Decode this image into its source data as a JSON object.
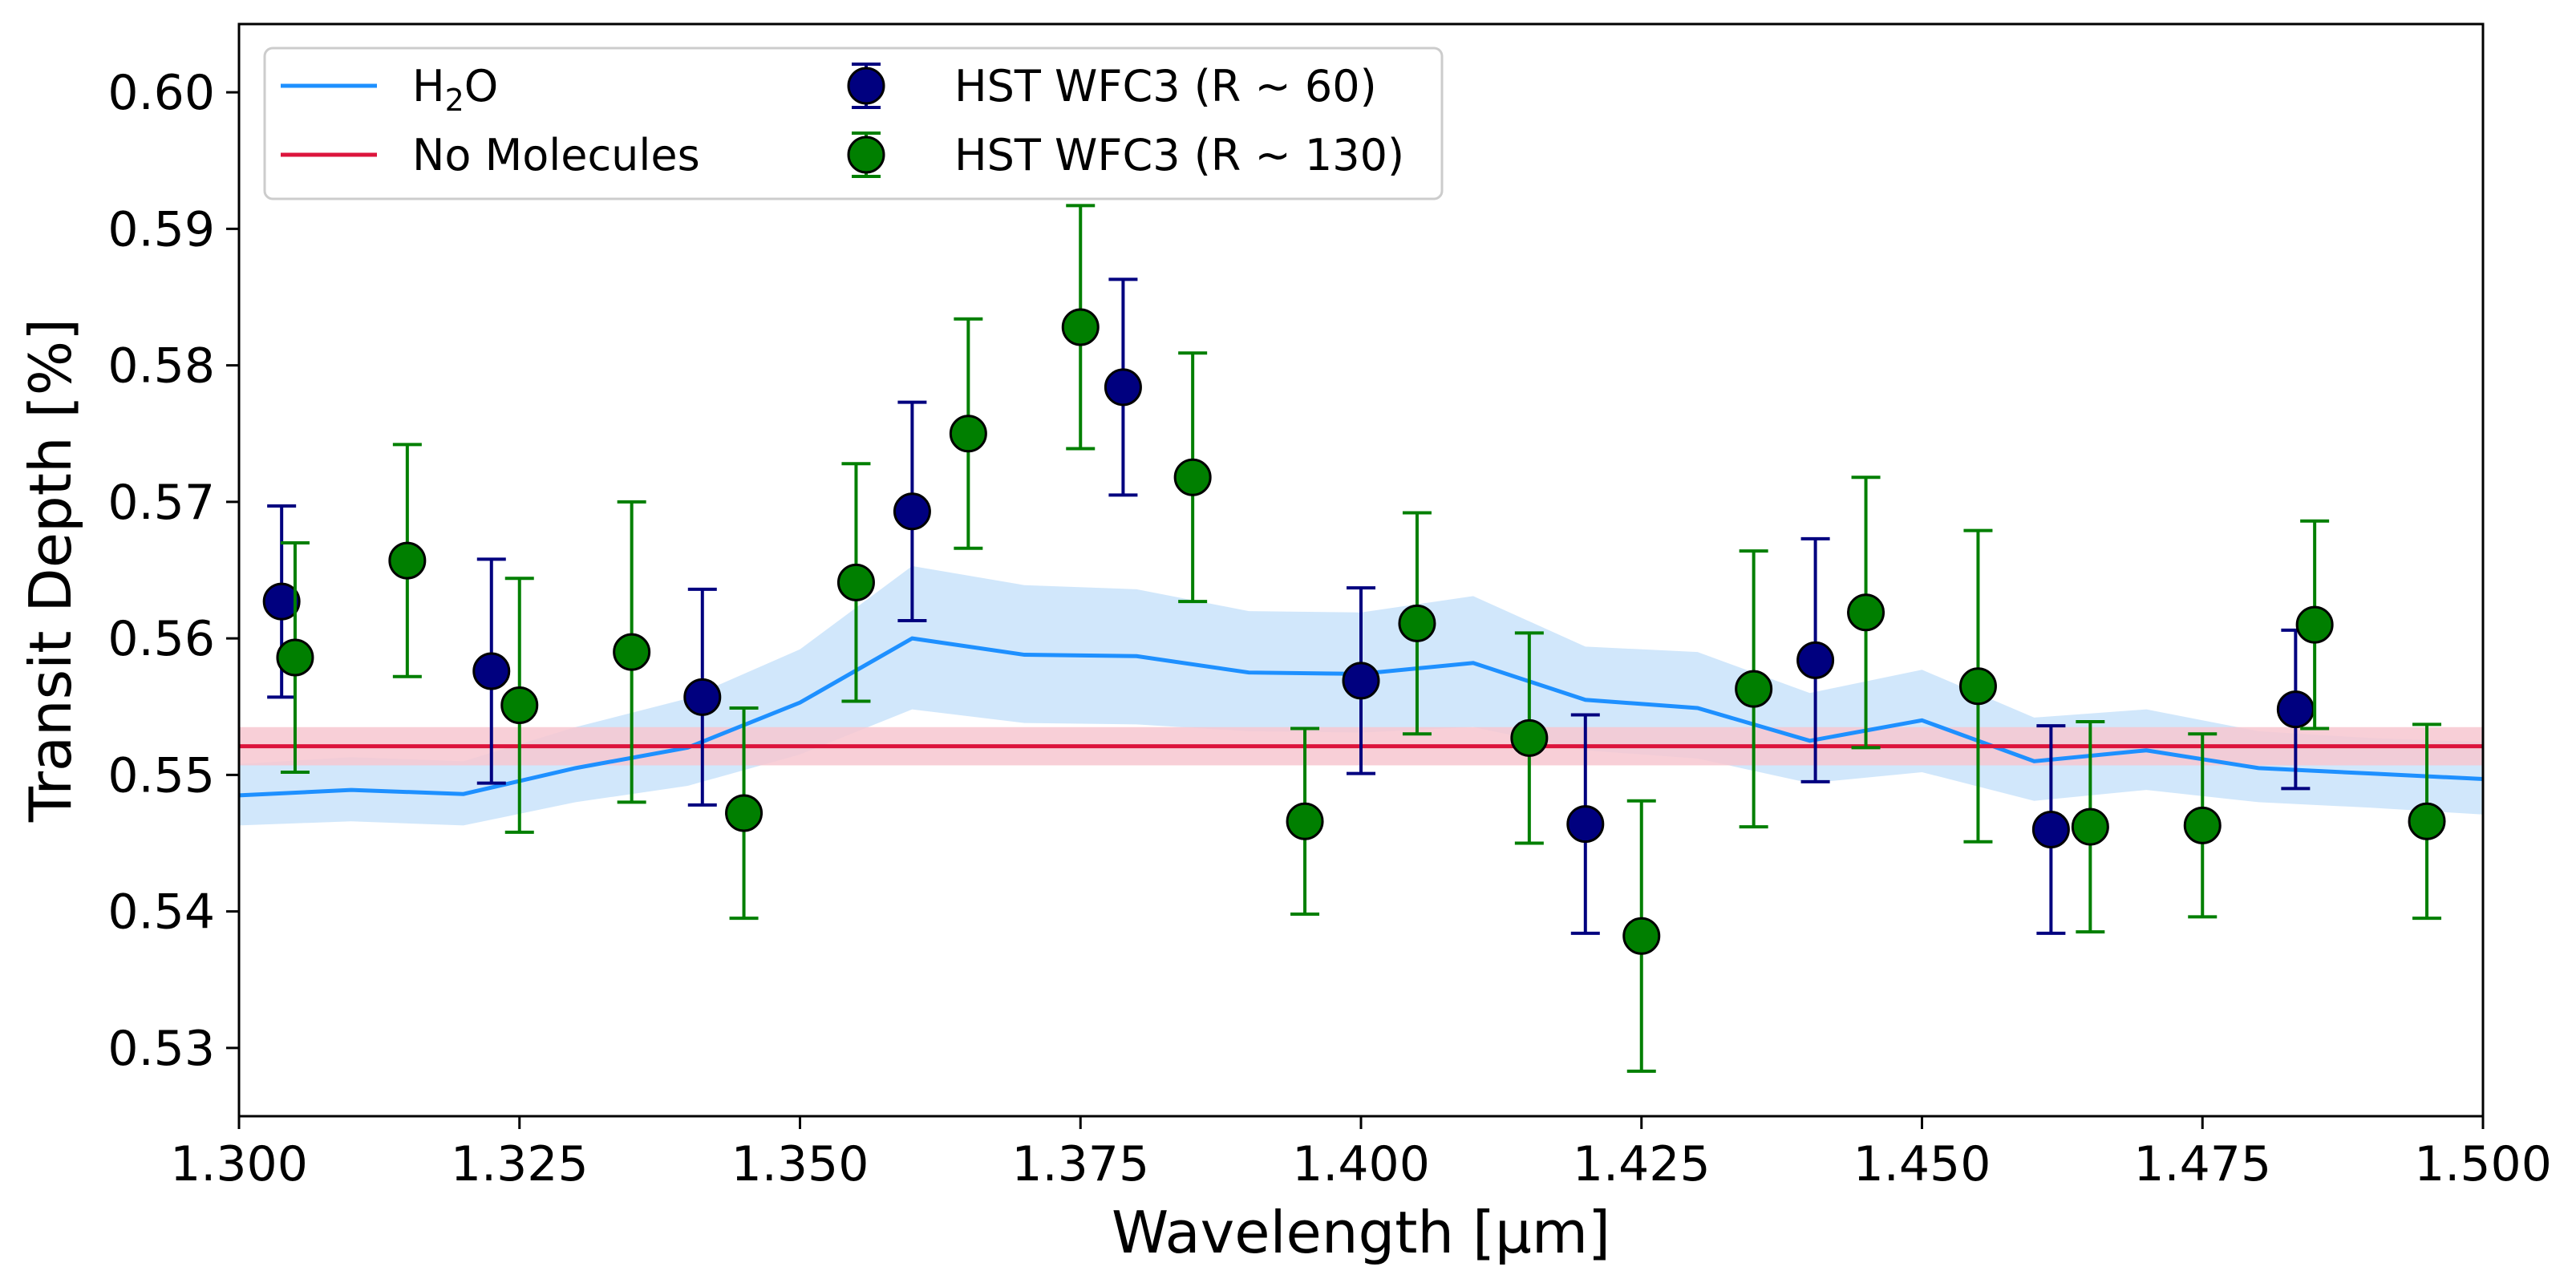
{
  "chart_data": {
    "type": "scatter",
    "title": "",
    "xlabel": "Wavelength [μm]",
    "ylabel": "Transit Depth [%]",
    "xlim": [
      1.3,
      1.5
    ],
    "ylim": [
      0.525,
      0.605
    ],
    "xticks": [
      "1.300",
      "1.325",
      "1.350",
      "1.375",
      "1.400",
      "1.425",
      "1.450",
      "1.475",
      "1.500"
    ],
    "xtick_values": [
      1.3,
      1.325,
      1.35,
      1.375,
      1.4,
      1.425,
      1.45,
      1.475,
      1.5
    ],
    "yticks": [
      "0.53",
      "0.54",
      "0.55",
      "0.56",
      "0.57",
      "0.58",
      "0.59",
      "0.60"
    ],
    "ytick_values": [
      0.53,
      0.54,
      0.55,
      0.56,
      0.57,
      0.58,
      0.59,
      0.6
    ],
    "grid": false,
    "legend_position": "top-left",
    "colors": {
      "h2o_line": "#1e90ff",
      "h2o_band": "#cce4fb",
      "flat_line": "#dc143c",
      "flat_band": "#f7c7d0",
      "hst60": "#00007f",
      "hst130": "#007f00"
    },
    "legend": {
      "h2o_main": "H",
      "h2o_sub": "2",
      "h2o_tail": "O",
      "flat": "No Molecules",
      "hst60": "HST WFC3 (R ~ 60)",
      "hst130": "HST WFC3 (R ~ 130)"
    },
    "h2o_model": {
      "name": "H2O",
      "x": [
        1.3,
        1.31,
        1.32,
        1.33,
        1.34,
        1.35,
        1.36,
        1.37,
        1.38,
        1.39,
        1.4,
        1.41,
        1.42,
        1.43,
        1.44,
        1.45,
        1.46,
        1.47,
        1.48,
        1.49,
        1.5
      ],
      "y": [
        0.5485,
        0.5489,
        0.5486,
        0.5505,
        0.552,
        0.5553,
        0.56,
        0.5588,
        0.5587,
        0.5575,
        0.5574,
        0.5582,
        0.5555,
        0.5549,
        0.5525,
        0.554,
        0.551,
        0.5518,
        0.5505,
        0.5501,
        0.5497
      ],
      "lower": [
        0.5463,
        0.5466,
        0.5463,
        0.548,
        0.5492,
        0.5515,
        0.5548,
        0.5538,
        0.5537,
        0.5532,
        0.5531,
        0.5535,
        0.5518,
        0.5512,
        0.5494,
        0.5502,
        0.5481,
        0.5489,
        0.548,
        0.5476,
        0.5471
      ],
      "upper": [
        0.5508,
        0.5513,
        0.551,
        0.5535,
        0.5556,
        0.5592,
        0.5653,
        0.5639,
        0.5636,
        0.562,
        0.5619,
        0.5631,
        0.5594,
        0.559,
        0.556,
        0.5577,
        0.5542,
        0.5548,
        0.5532,
        0.5527,
        0.5524
      ]
    },
    "flat_model": {
      "name": "No Molecules",
      "y": 0.5521,
      "lower": 0.5507,
      "upper": 0.5535
    },
    "series": [
      {
        "name": "HST WFC3 (R ~ 60)",
        "x": [
          1.3038,
          1.3225,
          1.3413,
          1.36,
          1.3788,
          1.4,
          1.42,
          1.4405,
          1.4615,
          1.4833
        ],
        "y": [
          0.5627,
          0.5576,
          0.5557,
          0.5693,
          0.5784,
          0.5569,
          0.5464,
          0.5584,
          0.546,
          0.5548
        ],
        "yerr": [
          0.007,
          0.0082,
          0.0079,
          0.008,
          0.0079,
          0.0068,
          0.008,
          0.0089,
          0.0076,
          0.0058
        ]
      },
      {
        "name": "HST WFC3 (R ~ 130)",
        "x": [
          1.305,
          1.315,
          1.325,
          1.335,
          1.345,
          1.355,
          1.365,
          1.375,
          1.385,
          1.395,
          1.405,
          1.415,
          1.425,
          1.435,
          1.445,
          1.455,
          1.465,
          1.475,
          1.485,
          1.495
        ],
        "y": [
          0.5586,
          0.5657,
          0.5551,
          0.559,
          0.5472,
          0.5641,
          0.575,
          0.5828,
          0.5718,
          0.5466,
          0.5611,
          0.5527,
          0.5382,
          0.5563,
          0.5619,
          0.5565,
          0.5462,
          0.5463,
          0.561,
          0.5466
        ],
        "yerr": [
          0.0084,
          0.0085,
          0.0093,
          0.011,
          0.0077,
          0.0087,
          0.0084,
          0.0089,
          0.0091,
          0.0068,
          0.0081,
          0.0077,
          0.0099,
          0.0101,
          0.0099,
          0.0114,
          0.0077,
          0.0067,
          0.0076,
          0.0071
        ]
      }
    ]
  }
}
